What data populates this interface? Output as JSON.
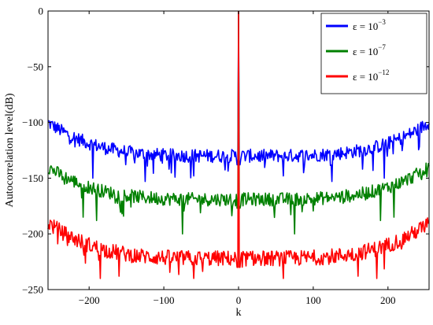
{
  "chart_data": {
    "type": "line",
    "title": "",
    "xlabel": "k",
    "ylabel": "Autocorrelation level(dB)",
    "xlim": [
      -255,
      255
    ],
    "ylim": [
      -250,
      0
    ],
    "xticks": [
      -200,
      -100,
      0,
      100,
      200
    ],
    "yticks": [
      0,
      -50,
      -100,
      -150,
      -200,
      -250
    ],
    "xtick_labels": [
      "−200",
      "−100",
      "0",
      "100",
      "200"
    ],
    "ytick_labels": [
      "0",
      "−50",
      "−100",
      "−150",
      "−200",
      "−250"
    ],
    "grid": false,
    "legend_position": "top-right",
    "peak": {
      "x": 0,
      "y": 0
    },
    "series": [
      {
        "name_base": "ε = 10",
        "name_exp": "−3",
        "color": "#0000ff",
        "baseline": -130,
        "edge_level": -100,
        "noise_amp": 6,
        "dips": [
          {
            "x": -195,
            "y": -150
          },
          {
            "x": -125,
            "y": -153
          },
          {
            "x": -60,
            "y": -148
          },
          {
            "x": 0,
            "y": -145
          },
          {
            "x": 60,
            "y": -148
          },
          {
            "x": 125,
            "y": -153
          },
          {
            "x": 195,
            "y": -150
          }
        ]
      },
      {
        "name_base": "ε = 10",
        "name_exp": "−7",
        "color": "#008000",
        "baseline": -169,
        "edge_level": -140,
        "noise_amp": 6,
        "dips": [
          {
            "x": -208,
            "y": -185
          },
          {
            "x": -190,
            "y": -188
          },
          {
            "x": -75,
            "y": -200
          },
          {
            "x": 0,
            "y": -190
          },
          {
            "x": 75,
            "y": -200
          },
          {
            "x": 190,
            "y": -188
          },
          {
            "x": 208,
            "y": -185
          }
        ]
      },
      {
        "name_base": "ε = 10",
        "name_exp": "−12",
        "color": "#ff0000",
        "baseline": -222,
        "edge_level": -190,
        "noise_amp": 7,
        "dips": [
          {
            "x": -185,
            "y": -240
          },
          {
            "x": -160,
            "y": -238
          },
          {
            "x": -60,
            "y": -240
          },
          {
            "x": 0,
            "y": -240
          },
          {
            "x": 60,
            "y": -240
          },
          {
            "x": 160,
            "y": -238
          },
          {
            "x": 185,
            "y": -240
          }
        ]
      }
    ]
  }
}
